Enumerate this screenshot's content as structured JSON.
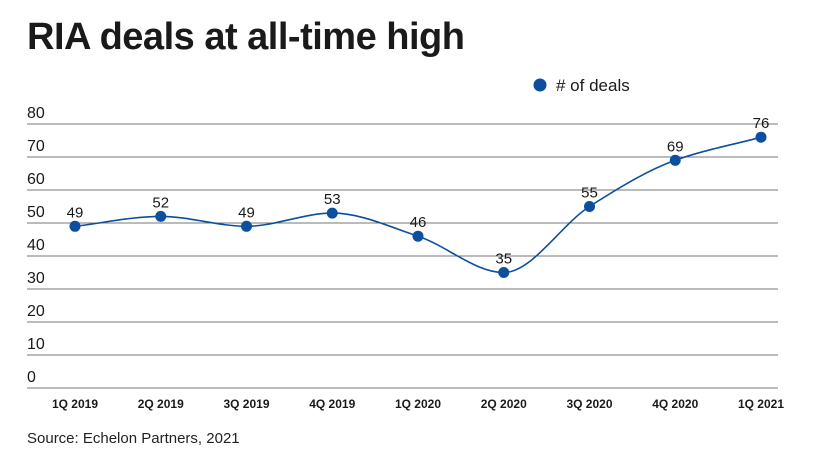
{
  "title": "RIA deals at all-time high",
  "source": "Source: Echelon Partners, 2021",
  "colors": {
    "series": "#0b4f9e",
    "grid": "#777777"
  },
  "chart_data": {
    "type": "line",
    "title": "RIA deals at all-time high",
    "categories": [
      "1Q 2019",
      "2Q 2019",
      "3Q 2019",
      "4Q 2019",
      "1Q 2020",
      "2Q 2020",
      "3Q 2020",
      "4Q 2020",
      "1Q 2021"
    ],
    "series": [
      {
        "name": "# of deals",
        "values": [
          49,
          52,
          49,
          53,
          46,
          35,
          55,
          69,
          76
        ]
      }
    ],
    "yticks": [
      0,
      10,
      20,
      30,
      40,
      50,
      60,
      70,
      80
    ],
    "ylim": [
      0,
      80
    ],
    "grid": true,
    "legend": "top-right",
    "data_labels": true,
    "smooth": true
  }
}
